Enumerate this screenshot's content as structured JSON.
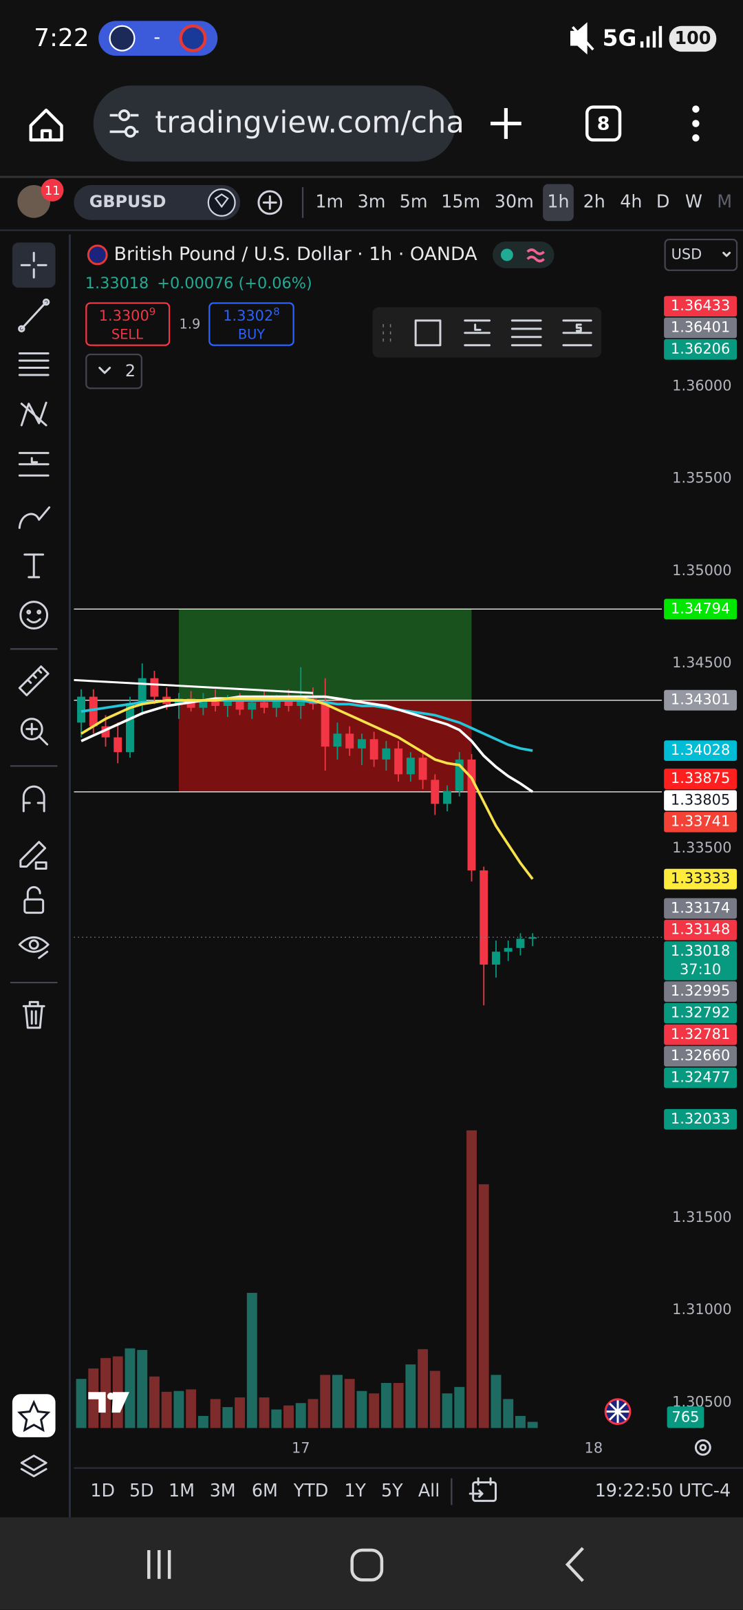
{
  "status_bar": {
    "time": "7:22",
    "score": "-",
    "network": "5G",
    "battery": "100"
  },
  "browser": {
    "url": "tradingview.com/cha",
    "tab_count": "8"
  },
  "toolbar": {
    "notifications": "11",
    "symbol": "GBPUSD",
    "intervals": [
      "1m",
      "3m",
      "5m",
      "15m",
      "30m",
      "1h",
      "2h",
      "4h",
      "D",
      "W",
      "M"
    ],
    "active_interval": 5
  },
  "legend": {
    "title": "British Pound / U.S. Dollar · 1h · OANDA",
    "price": "1.33018",
    "change": "+0.00076 (+0.06%)",
    "sell_price": "1.3300",
    "sell_pip": "9",
    "sell_label": "SELL",
    "spread": "1.9",
    "buy_price": "1.3302",
    "buy_pip": "8",
    "buy_label": "BUY",
    "indicator_count": "2",
    "currency": "USD"
  },
  "chart_data": {
    "type": "candlestick",
    "x": [
      -18,
      -17,
      -16,
      -15,
      -14,
      -13,
      -12,
      -11,
      -10,
      -9,
      -8,
      -7,
      -6,
      -5,
      -4,
      -3,
      -2,
      -1,
      0,
      1,
      2,
      3,
      4,
      5,
      6,
      7,
      8,
      9,
      10,
      11,
      12,
      13,
      14,
      15,
      16,
      17,
      18,
      19
    ],
    "open": [
      1.3418,
      1.3432,
      1.3416,
      1.341,
      1.3402,
      1.3428,
      1.3442,
      1.3432,
      1.3428,
      1.3431,
      1.3426,
      1.343,
      1.3427,
      1.3431,
      1.3425,
      1.3429,
      1.3426,
      1.343,
      1.3427,
      1.3431,
      1.3428,
      1.3405,
      1.3412,
      1.3404,
      1.3409,
      1.3398,
      1.3404,
      1.339,
      1.3399,
      1.3387,
      1.3374,
      1.3381,
      1.3398,
      1.3338,
      1.3287,
      1.3294,
      1.3296,
      1.3301
    ],
    "high": [
      1.3436,
      1.3436,
      1.3422,
      1.3418,
      1.3432,
      1.345,
      1.3446,
      1.3437,
      1.3434,
      1.3435,
      1.3434,
      1.3436,
      1.3433,
      1.3434,
      1.3432,
      1.3435,
      1.3433,
      1.3436,
      1.3448,
      1.3437,
      1.3442,
      1.3418,
      1.3416,
      1.3412,
      1.3413,
      1.3408,
      1.3408,
      1.3402,
      1.3403,
      1.339,
      1.3384,
      1.3402,
      1.3401,
      1.334,
      1.33,
      1.33,
      1.3304,
      1.3304
    ],
    "low": [
      1.341,
      1.3412,
      1.3405,
      1.3396,
      1.3399,
      1.3422,
      1.3428,
      1.3425,
      1.342,
      1.3424,
      1.3422,
      1.3424,
      1.3421,
      1.3422,
      1.342,
      1.3423,
      1.3421,
      1.3424,
      1.342,
      1.3425,
      1.3392,
      1.3398,
      1.34,
      1.3395,
      1.3394,
      1.3392,
      1.3386,
      1.3386,
      1.3382,
      1.3368,
      1.337,
      1.3378,
      1.3332,
      1.3265,
      1.328,
      1.3289,
      1.3292,
      1.3297
    ],
    "close": [
      1.3432,
      1.3416,
      1.341,
      1.3402,
      1.3428,
      1.3442,
      1.3432,
      1.3428,
      1.3431,
      1.3426,
      1.343,
      1.3427,
      1.3431,
      1.3425,
      1.3429,
      1.3426,
      1.343,
      1.3427,
      1.3431,
      1.3428,
      1.3405,
      1.3412,
      1.3404,
      1.3409,
      1.3398,
      1.3404,
      1.339,
      1.3399,
      1.3387,
      1.3374,
      1.3381,
      1.3398,
      1.3338,
      1.3287,
      1.3294,
      1.3296,
      1.3301,
      1.33018
    ],
    "volume": [
      6100,
      7400,
      8700,
      8900,
      9900,
      9700,
      6400,
      4500,
      4600,
      4800,
      1500,
      3600,
      2600,
      3800,
      16800,
      3800,
      2300,
      2800,
      3100,
      3600,
      6600,
      6600,
      6100,
      4600,
      4300,
      5600,
      5600,
      7900,
      9800,
      7100,
      4300,
      5100,
      37000,
      30300,
      6600,
      3600,
      1500,
      765
    ],
    "up_color": "#089981",
    "down_color": "#f23645",
    "volume_up_color": "#1e6b62",
    "volume_down_color": "#7d2b2b",
    "moving_averages": [
      {
        "color": "#26c6da",
        "values": [
          1.3424,
          1.3425,
          1.3426,
          1.3427,
          1.3428,
          1.3429,
          1.3429,
          1.343,
          1.343,
          1.343,
          1.343,
          1.343,
          1.343,
          1.343,
          1.343,
          1.343,
          1.343,
          1.343,
          1.343,
          1.3429,
          1.3429,
          1.3428,
          1.3428,
          1.3427,
          1.3427,
          1.3426,
          1.3425,
          1.3424,
          1.3423,
          1.3422,
          1.342,
          1.3418,
          1.3415,
          1.3412,
          1.3409,
          1.3406,
          1.3404,
          1.34028
        ]
      },
      {
        "color": "#ffffff",
        "values": [
          1.3408,
          1.3411,
          1.3414,
          1.3417,
          1.342,
          1.3423,
          1.3425,
          1.3427,
          1.3428,
          1.3429,
          1.343,
          1.3431,
          1.3431,
          1.3432,
          1.3432,
          1.3432,
          1.3432,
          1.3432,
          1.3432,
          1.3432,
          1.3432,
          1.3431,
          1.343,
          1.3429,
          1.3428,
          1.3427,
          1.3425,
          1.3423,
          1.3421,
          1.3419,
          1.3417,
          1.3414,
          1.3408,
          1.34,
          1.3394,
          1.3389,
          1.3385,
          1.33805
        ]
      },
      {
        "color": "#f7e24b",
        "values": [
          1.3412,
          1.3416,
          1.342,
          1.3423,
          1.3426,
          1.3428,
          1.3429,
          1.343,
          1.343,
          1.343,
          1.343,
          1.343,
          1.3431,
          1.3431,
          1.3431,
          1.3431,
          1.3431,
          1.3431,
          1.3431,
          1.343,
          1.3428,
          1.3425,
          1.3422,
          1.3419,
          1.3416,
          1.3413,
          1.341,
          1.3406,
          1.3402,
          1.3398,
          1.3396,
          1.3395,
          1.3388,
          1.3375,
          1.3362,
          1.3352,
          1.3342,
          1.33333
        ]
      }
    ],
    "trend_line": {
      "x": [
        -18.6,
        1
      ],
      "y": [
        1.3441,
        1.3434
      ],
      "color": "#ffffff"
    },
    "position": {
      "x": [
        -10,
        14
      ],
      "target": 1.34794,
      "entry": 1.34301,
      "stop": 1.33805,
      "profit_color": "#1b5e20",
      "loss_color": "#8e1111"
    },
    "hlines": [
      1.34794,
      1.34301,
      1.33805
    ],
    "countdown": "37:10",
    "price_labels": [
      {
        "value": 1.36433,
        "color": "#f23645"
      },
      {
        "value": 1.36401,
        "color": "#787b86"
      },
      {
        "value": 1.36206,
        "color": "#089981"
      },
      {
        "value": 1.34794,
        "color": "#00e600"
      },
      {
        "value": 1.34301,
        "color": "#9598a1"
      },
      {
        "value": 1.34028,
        "color": "#00bcd4"
      },
      {
        "value": 1.33875,
        "color": "#ff1f1f"
      },
      {
        "value": 1.33805,
        "color": "#ffffff"
      },
      {
        "value": 1.33741,
        "color": "#f44336"
      },
      {
        "value": 1.33333,
        "color": "#ffeb3b"
      },
      {
        "value": 1.33174,
        "color": "#787b86"
      },
      {
        "value": 1.33148,
        "color": "#f23645"
      },
      {
        "value": 1.32995,
        "color": "#787b86"
      },
      {
        "value": 1.32792,
        "color": "#089981"
      },
      {
        "value": 1.32781,
        "color": "#f23645"
      },
      {
        "value": 1.3266,
        "label": "1.32660",
        "color": "#787b86"
      },
      {
        "value": 1.32477,
        "color": "#089981"
      },
      {
        "value": 1.32033,
        "color": "#089981"
      }
    ],
    "xlim": [
      -18.6,
      29.6
    ],
    "xticks": [
      {
        "value": 0,
        "label": "17"
      },
      {
        "value": 24,
        "label": "18"
      }
    ],
    "ylim": [
      1.3034,
      1.368
    ],
    "yticks": [
      {
        "value": 1.36,
        "label": "1.36000"
      },
      {
        "value": 1.355,
        "label": "1.35500"
      },
      {
        "value": 1.35,
        "label": "1.35000"
      },
      {
        "value": 1.345,
        "label": "1.34500"
      },
      {
        "value": 1.335,
        "label": "1.33500"
      },
      {
        "value": 1.315,
        "label": "1.31500"
      },
      {
        "value": 1.31,
        "label": "1.31000"
      },
      {
        "value": 1.305,
        "label": "1.30500"
      }
    ],
    "grid": false,
    "log_scale": false
  },
  "range_bar": {
    "ranges": [
      "1D",
      "5D",
      "1M",
      "3M",
      "6M",
      "YTD",
      "1Y",
      "5Y",
      "All"
    ],
    "clock": "19:22:50 UTC-4"
  }
}
